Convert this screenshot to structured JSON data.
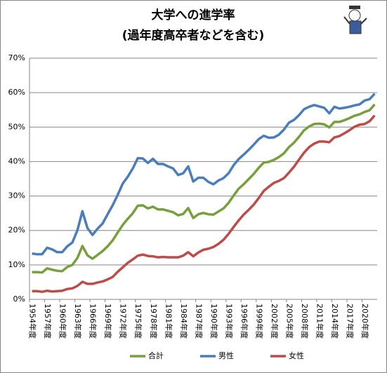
{
  "chart_data": {
    "type": "line",
    "title": "大学への進学率",
    "subtitle": "(過年度高卒者などを含む)",
    "categories": [
      "1954年度",
      null,
      null,
      "1957年度",
      null,
      null,
      "1960年度",
      null,
      null,
      "1963年度",
      null,
      null,
      "1966年度",
      null,
      null,
      "1969年度",
      null,
      null,
      "1972年度",
      null,
      null,
      "1975年度",
      null,
      null,
      "1978年度",
      null,
      null,
      "1981年度",
      null,
      null,
      "1984年度",
      null,
      null,
      "1987年度",
      null,
      null,
      "1990年度",
      null,
      null,
      "1993年度",
      null,
      null,
      "1996年度",
      null,
      null,
      "1999年度",
      null,
      null,
      "2002年度",
      null,
      null,
      "2005年度",
      null,
      null,
      "2008年度",
      null,
      null,
      "2011年度",
      null,
      null,
      "2014年度",
      null,
      null,
      "2017年度",
      null,
      null,
      "2020年度",
      null,
      null
    ],
    "series": [
      {
        "name": "合計",
        "color": "#77a03c",
        "values": [
          7.9,
          7.9,
          7.8,
          9.0,
          8.6,
          8.3,
          8.2,
          9.4,
          10.0,
          12.0,
          15.5,
          12.8,
          11.8,
          12.9,
          14.0,
          15.4,
          17.1,
          19.4,
          21.6,
          23.4,
          25.0,
          27.2,
          27.3,
          26.4,
          26.9,
          26.1,
          26.1,
          25.7,
          25.3,
          24.4,
          24.8,
          26.5,
          23.6,
          24.7,
          25.1,
          24.7,
          24.6,
          25.5,
          26.4,
          28.0,
          30.1,
          32.1,
          33.4,
          34.9,
          36.4,
          38.2,
          39.7,
          39.9,
          40.5,
          41.3,
          42.4,
          44.2,
          45.5,
          47.2,
          49.1,
          50.2,
          50.9,
          51.0,
          50.8,
          49.9,
          51.5,
          51.5,
          52.0,
          52.6,
          53.3,
          53.7,
          54.4,
          54.9,
          56.6
        ]
      },
      {
        "name": "男性",
        "color": "#4a7ebb",
        "values": [
          13.3,
          13.1,
          13.1,
          15.0,
          14.5,
          13.7,
          13.7,
          15.4,
          16.5,
          20.0,
          25.6,
          20.7,
          18.7,
          20.5,
          22.0,
          24.7,
          27.3,
          30.3,
          33.6,
          35.6,
          38.0,
          41.0,
          40.9,
          39.6,
          40.8,
          39.3,
          39.3,
          38.6,
          38.0,
          36.1,
          36.6,
          38.6,
          34.2,
          35.3,
          35.3,
          34.1,
          33.4,
          34.5,
          35.2,
          36.6,
          38.9,
          40.7,
          42.0,
          43.4,
          44.9,
          46.5,
          47.5,
          46.9,
          47.0,
          47.8,
          49.3,
          51.3,
          52.1,
          53.5,
          55.2,
          55.9,
          56.4,
          56.0,
          55.6,
          54.0,
          55.9,
          55.4,
          55.6,
          55.9,
          56.3,
          56.6,
          57.7,
          58.1,
          59.7
        ]
      },
      {
        "name": "女性",
        "color": "#be4b48",
        "values": [
          2.4,
          2.4,
          2.2,
          2.5,
          2.3,
          2.4,
          2.5,
          3.0,
          3.2,
          3.9,
          5.1,
          4.5,
          4.5,
          4.9,
          5.2,
          5.8,
          6.5,
          8.0,
          9.3,
          10.6,
          11.6,
          12.7,
          13.0,
          12.6,
          12.5,
          12.2,
          12.3,
          12.2,
          12.2,
          12.2,
          12.7,
          13.7,
          12.5,
          13.6,
          14.4,
          14.7,
          15.2,
          16.1,
          17.3,
          19.0,
          21.0,
          22.9,
          24.6,
          26.0,
          27.5,
          29.4,
          31.5,
          32.7,
          33.8,
          34.4,
          35.2,
          36.8,
          38.5,
          40.6,
          42.6,
          44.2,
          45.2,
          45.8,
          45.8,
          45.6,
          47.0,
          47.4,
          48.2,
          49.1,
          50.1,
          50.7,
          50.9,
          51.7,
          53.4
        ]
      }
    ],
    "ylim": [
      0,
      70
    ],
    "yticks": [
      {
        "value": 0,
        "label": "0%"
      },
      {
        "value": 10,
        "label": "10%"
      },
      {
        "value": 20,
        "label": "20%"
      },
      {
        "value": 30,
        "label": "30%"
      },
      {
        "value": 40,
        "label": "40%"
      },
      {
        "value": 50,
        "label": "50%"
      },
      {
        "value": 60,
        "label": "60%"
      },
      {
        "value": 70,
        "label": "70%"
      }
    ],
    "grid": true,
    "legend": "bottom"
  }
}
